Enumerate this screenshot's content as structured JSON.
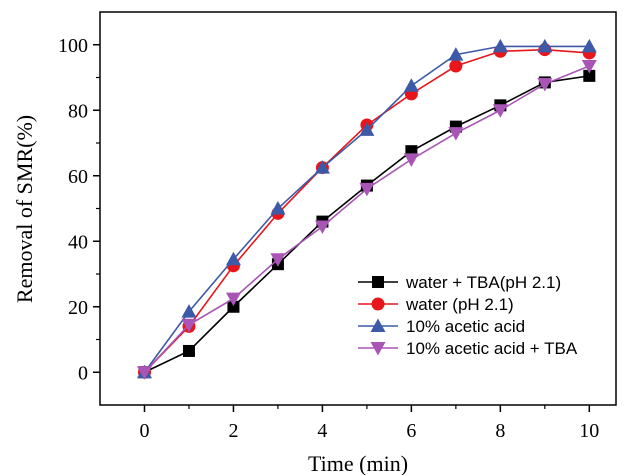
{
  "chart_data": {
    "type": "line",
    "title": "",
    "xlabel": "Time (min)",
    "ylabel": "Removal of SMR(%)",
    "xlim": [
      -1,
      10.6
    ],
    "ylim": [
      -10,
      110
    ],
    "xticks": [
      0,
      2,
      4,
      6,
      8,
      10
    ],
    "yticks": [
      0,
      20,
      40,
      60,
      80,
      100
    ],
    "grid": false,
    "legend_position": "bottom-right",
    "x": [
      0,
      1,
      2,
      3,
      4,
      5,
      6,
      7,
      8,
      9,
      10
    ],
    "series": [
      {
        "name": "water + TBA(pH 2.1)",
        "marker": "square",
        "color": "#000000",
        "values": [
          0,
          6.5,
          20,
          33,
          46,
          57,
          67.5,
          75,
          81.5,
          88.5,
          90.5
        ]
      },
      {
        "name": "water (pH 2.1)",
        "marker": "circle",
        "color": "#e8151b",
        "values": [
          0,
          14,
          32.5,
          48.5,
          62.5,
          75.5,
          85,
          93.5,
          98,
          98.5,
          97.5
        ]
      },
      {
        "name": "10% acetic acid",
        "marker": "triangle-up",
        "color": "#3d5aa8",
        "values": [
          0,
          18.5,
          34.5,
          50,
          62.5,
          74,
          87.5,
          97,
          99.5,
          99.5,
          99.5
        ]
      },
      {
        "name": "10% acetic acid + TBA",
        "marker": "triangle-down",
        "color": "#a855b5",
        "values": [
          0,
          14.5,
          22.5,
          34.5,
          44.5,
          56,
          65,
          73,
          80,
          88,
          93.5
        ]
      }
    ]
  }
}
